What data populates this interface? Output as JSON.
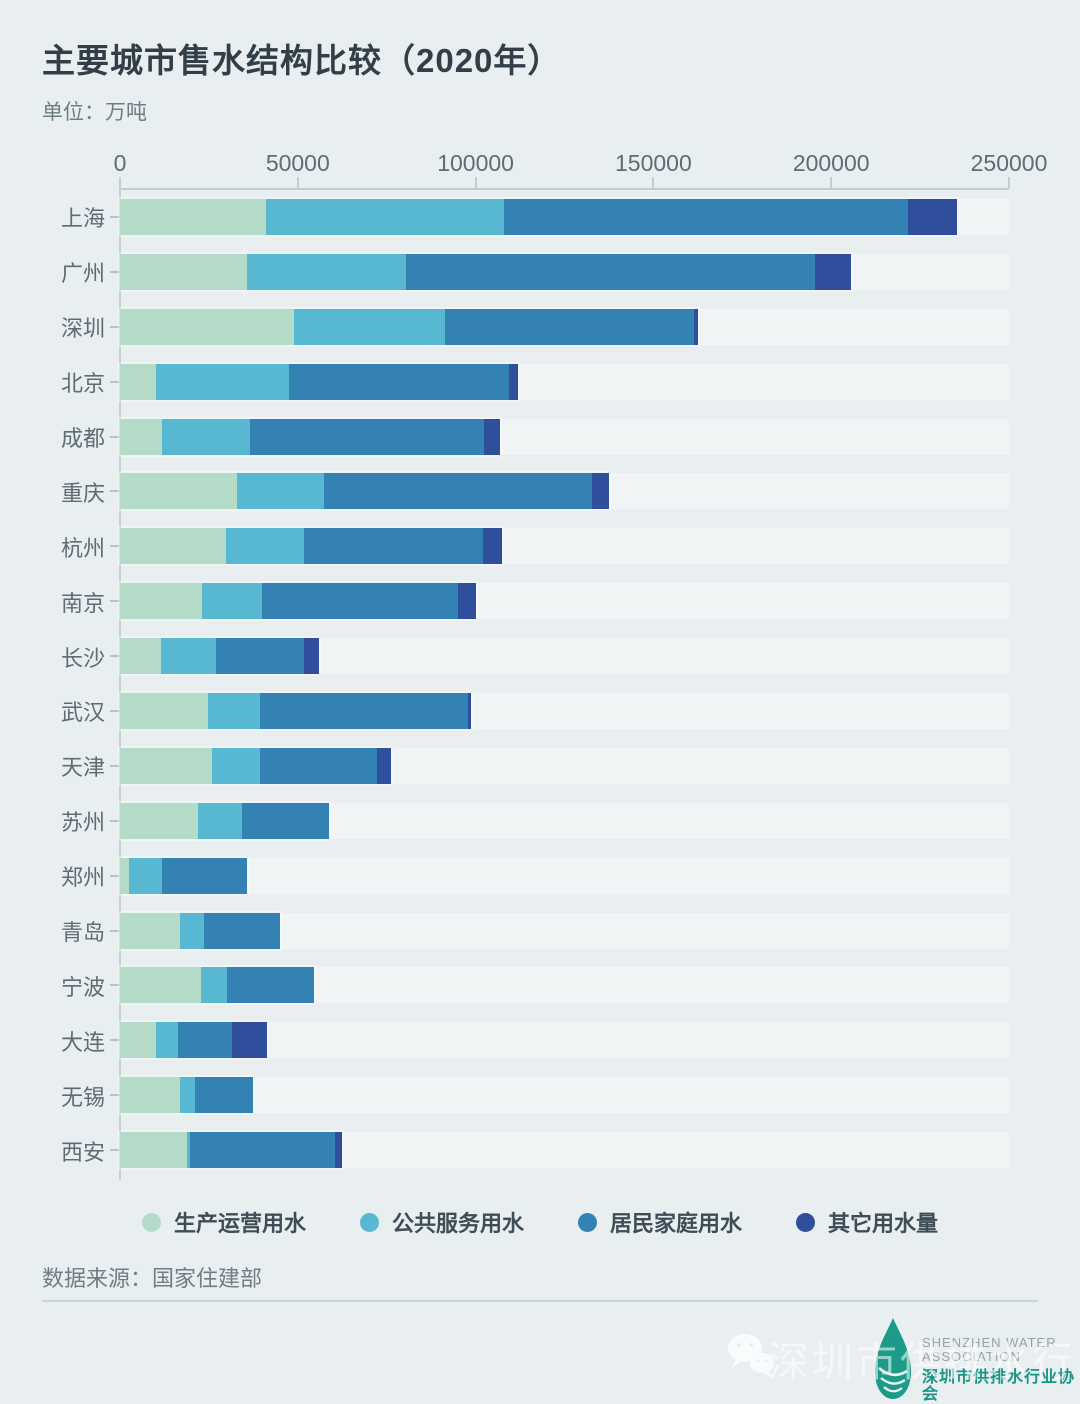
{
  "title": "主要城市售水结构比较（2020年）",
  "subtitle": "单位：万吨",
  "source": "数据来源：国家住建部",
  "colors": {
    "background": "#e9eff0",
    "axis": "#c3cdd0",
    "title_text": "#333f48",
    "label_text": "#5d6c75"
  },
  "chart_data": {
    "type": "bar",
    "stacked": true,
    "orientation": "horizontal",
    "unit": "万吨",
    "xlim": [
      0,
      250000
    ],
    "x_ticks": [
      0,
      50000,
      100000,
      150000,
      200000,
      250000
    ],
    "grid": false,
    "legend_position": "bottom",
    "categories": [
      "上海",
      "广州",
      "深圳",
      "北京",
      "成都",
      "重庆",
      "杭州",
      "南京",
      "长沙",
      "武汉",
      "天津",
      "苏州",
      "郑州",
      "青岛",
      "宁波",
      "大连",
      "无锡",
      "西安"
    ],
    "series": [
      {
        "key": "production",
        "name": "生产运营用水",
        "color": "#b3dbc7",
        "values": [
          41000,
          35600,
          49000,
          10100,
          11700,
          33000,
          29900,
          23100,
          11400,
          24800,
          25900,
          21800,
          2400,
          16900,
          22900,
          10200,
          16800,
          18800
        ]
      },
      {
        "key": "public-service",
        "name": "公共服务用水",
        "color": "#58b8d2",
        "values": [
          66900,
          44900,
          42400,
          37400,
          25000,
          24400,
          21900,
          16900,
          15600,
          14600,
          13500,
          12500,
          9300,
          6800,
          7200,
          6100,
          4200,
          800
        ]
      },
      {
        "key": "residential",
        "name": "居民家庭用水",
        "color": "#3482b4",
        "values": [
          113600,
          114900,
          70100,
          61900,
          65700,
          75300,
          50400,
          55000,
          24700,
          58600,
          32900,
          24600,
          23900,
          21400,
          24400,
          15300,
          16300,
          40800
        ]
      },
      {
        "key": "other",
        "name": "其它用水量",
        "color": "#2f4f9d",
        "values": [
          14000,
          10100,
          1100,
          2600,
          4600,
          4700,
          5300,
          5000,
          4300,
          800,
          3800,
          0,
          0,
          0,
          0,
          9800,
          0,
          2000
        ]
      }
    ]
  },
  "watermark": {
    "text": "深圳市供排水行业协会"
  },
  "logo": {
    "en_line1": "SHENZHEN WATER",
    "en_line2": "ASSOCIATION",
    "cn": "深圳市供排水行业协会"
  }
}
